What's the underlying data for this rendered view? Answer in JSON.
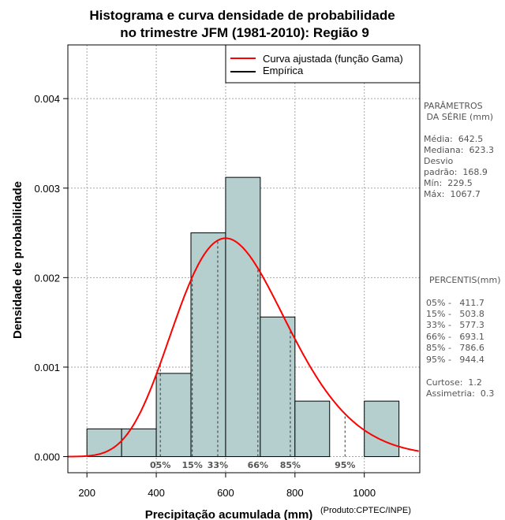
{
  "chart_data": {
    "type": "histogram",
    "title": [
      "Histograma e curva densidade de probabilidade",
      "no trimestre JFM (1981-2010): Região 9"
    ],
    "xlabel": "Precipitação acumulada (mm)",
    "ylabel": "Densidade de probabilidade",
    "credit": "(Produto:CPTEC/INPE)",
    "xlim": [
      145,
      1160
    ],
    "ylim": [
      -0.00018,
      0.0046
    ],
    "xticks": [
      200,
      400,
      600,
      800,
      1000
    ],
    "yticks": [
      0.0,
      0.001,
      0.002,
      0.003,
      0.004
    ],
    "ytick_labels": [
      "0.000",
      "0.001",
      "0.002",
      "0.003",
      "0.004"
    ],
    "grid": true,
    "bins": [
      {
        "start": 200,
        "end": 300,
        "density": 0.00031
      },
      {
        "start": 300,
        "end": 400,
        "density": 0.00031
      },
      {
        "start": 400,
        "end": 500,
        "density": 0.00093
      },
      {
        "start": 500,
        "end": 600,
        "density": 0.0025
      },
      {
        "start": 600,
        "end": 700,
        "density": 0.00312
      },
      {
        "start": 700,
        "end": 800,
        "density": 0.00156
      },
      {
        "start": 800,
        "end": 900,
        "density": 0.00062
      },
      {
        "start": 900,
        "end": 1000,
        "density": 0.0
      },
      {
        "start": 1000,
        "end": 1100,
        "density": 0.00062
      }
    ],
    "gamma_fit": {
      "mean": 642.5,
      "sd": 168.9,
      "peak_density": 0.00244,
      "peak_at": 600
    },
    "percentiles": [
      {
        "label": "05%",
        "value": 411.7
      },
      {
        "label": "15%",
        "value": 503.8
      },
      {
        "label": "33%",
        "value": 577.3
      },
      {
        "label": "66%",
        "value": 693.1
      },
      {
        "label": "85%",
        "value": 786.6
      },
      {
        "label": "95%",
        "value": 944.4
      }
    ],
    "colors": {
      "bar_fill": "#b5cfcf",
      "curve": "#ff0000",
      "empirical": "#000000",
      "grid": "#a6a6a6",
      "pct_label": "#555555"
    },
    "legend": [
      {
        "label": "Curva ajustada (função Gama)",
        "color": "#ff0000"
      },
      {
        "label": "Empírica",
        "color": "#000000"
      }
    ],
    "legend_position": "top-right"
  },
  "side_panel": {
    "params_lines": [
      "PARÂMETROS",
      " DA SÉRIE (mm)",
      "",
      "Média:  642.5",
      "Mediana:  623.3",
      "Desvio",
      "padrão:  168.9",
      "Mín:  229.5",
      "Máx:  1067.7"
    ],
    "percentis_lines": [
      "PERCENTIS(mm)",
      "",
      "05% -   411.7",
      "15% -   503.8",
      "33% -   577.3",
      "66% -   693.1",
      "85% -   786.6",
      "95% -   944.4",
      "",
      "Curtose:  1.2",
      "Assimetria:  0.3"
    ]
  }
}
